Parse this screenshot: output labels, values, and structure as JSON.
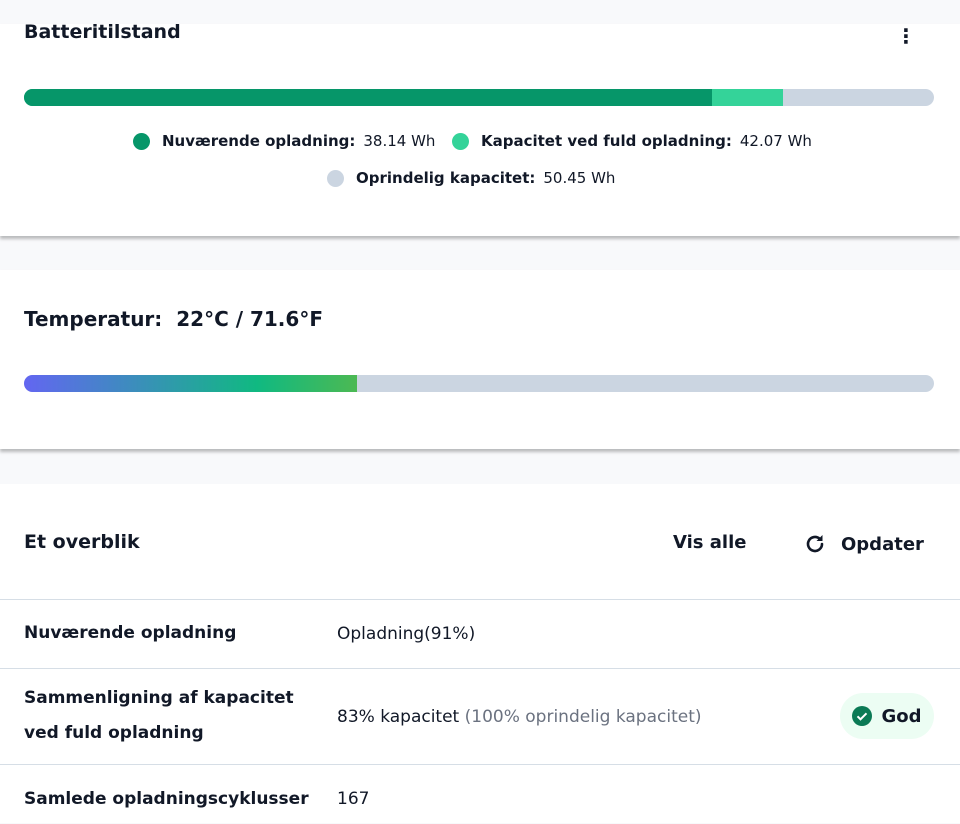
{
  "battery": {
    "title": "Batteritilstand",
    "menu_icon": "more-vertical-icon",
    "current_fraction": 0.756,
    "full_fraction": 0.834,
    "colors": {
      "current": "#069669",
      "full": "#34d399",
      "original": "#cbd5e1"
    },
    "legend": [
      {
        "label": "Nuværende opladning:",
        "value": "38.14 Wh"
      },
      {
        "label": "Kapacitet ved fuld opladning:",
        "value": "42.07 Wh"
      },
      {
        "label": "Oprindelig kapacitet:",
        "value": "50.45 Wh"
      }
    ]
  },
  "temperature": {
    "label": "Temperatur:",
    "value": "22°C / 71.6°F",
    "fill_fraction": 0.366
  },
  "overview": {
    "title": "Et overblik",
    "view_all": "Vis alle",
    "refresh": "Opdater",
    "refresh_icon": "refresh-icon",
    "rows": [
      {
        "label": "Nuværende opladning",
        "value": "Opladning(91%)"
      },
      {
        "label": "Sammenligning af kapacitet ved fuld opladning",
        "value": "83% kapacitet",
        "note": "(100% oprindelig kapacitet)",
        "badge": "God",
        "badge_icon": "check-circle-icon"
      },
      {
        "label": "Samlede opladningscyklusser",
        "value": "167"
      }
    ]
  }
}
